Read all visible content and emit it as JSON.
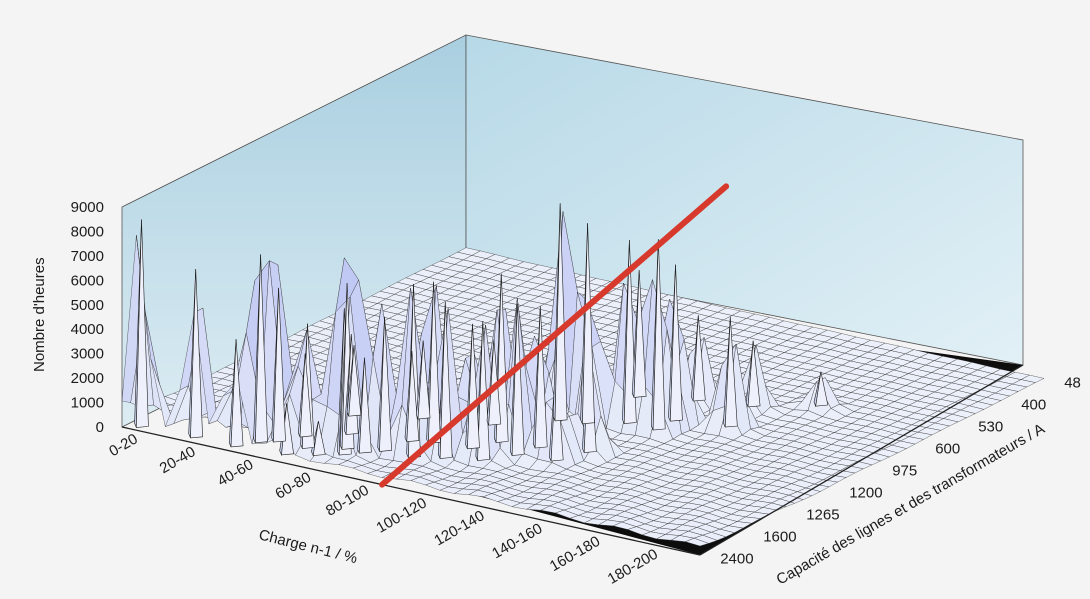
{
  "chart_data": {
    "type": "surface3d",
    "title": "",
    "zlabel": "Nombre d'heures",
    "xlabel": "Charge n-1 / %",
    "ylabel": "Capacité des lignes et des transformateurs / A",
    "zlim": [
      0,
      9000
    ],
    "z_ticks": [
      "0",
      "1000",
      "2000",
      "3000",
      "4000",
      "5000",
      "6000",
      "7000",
      "8000",
      "9000"
    ],
    "x_categories": [
      "0-20",
      "20-40",
      "40-60",
      "60-80",
      "80-100",
      "100-120",
      "120-140",
      "140-160",
      "160-180",
      "180-200"
    ],
    "y_ticks": [
      "48",
      "400",
      "530",
      "600",
      "975",
      "1200",
      "1265",
      "1600",
      "2400"
    ],
    "peaks": [
      {
        "x": 0.3,
        "y": 0.05,
        "z": 8600
      },
      {
        "x": 1.2,
        "y": 0.1,
        "z": 7000
      },
      {
        "x": 1.9,
        "y": 0.1,
        "z": 4500
      },
      {
        "x": 2.7,
        "y": 0.2,
        "z": 2200
      },
      {
        "x": 3.1,
        "y": 0.4,
        "z": 1500
      },
      {
        "x": 2.1,
        "y": 0.4,
        "z": 7800
      },
      {
        "x": 2.3,
        "y": 0.55,
        "z": 6400
      },
      {
        "x": 2.8,
        "y": 0.55,
        "z": 5200
      },
      {
        "x": 3.4,
        "y": 0.6,
        "z": 6100
      },
      {
        "x": 3.3,
        "y": 0.8,
        "z": 6900
      },
      {
        "x": 3.6,
        "y": 0.8,
        "z": 4000
      },
      {
        "x": 3.8,
        "y": 1.0,
        "z": 5600
      },
      {
        "x": 4.3,
        "y": 1.0,
        "z": 7200
      },
      {
        "x": 4.7,
        "y": 1.2,
        "z": 6500
      },
      {
        "x": 5.2,
        "y": 1.4,
        "z": 5800
      },
      {
        "x": 4.2,
        "y": 1.6,
        "z": 6700
      },
      {
        "x": 4.8,
        "y": 1.7,
        "z": 5200
      },
      {
        "x": 5.5,
        "y": 1.8,
        "z": 6300
      },
      {
        "x": 6.1,
        "y": 1.9,
        "z": 4200
      },
      {
        "x": 5.0,
        "y": 2.1,
        "z": 7000
      },
      {
        "x": 5.6,
        "y": 2.2,
        "z": 5900
      },
      {
        "x": 6.3,
        "y": 2.4,
        "z": 5000
      },
      {
        "x": 5.2,
        "y": 3.2,
        "z": 9000
      },
      {
        "x": 5.6,
        "y": 3.3,
        "z": 8300
      },
      {
        "x": 6.1,
        "y": 3.6,
        "z": 7600
      },
      {
        "x": 6.6,
        "y": 3.6,
        "z": 7900
      },
      {
        "x": 6.6,
        "y": 4.0,
        "z": 6500
      },
      {
        "x": 7.4,
        "y": 4.2,
        "z": 4600
      },
      {
        "x": 5.6,
        "y": 4.5,
        "z": 5300
      },
      {
        "x": 6.4,
        "y": 4.8,
        "z": 3600
      },
      {
        "x": 7.2,
        "y": 5.0,
        "z": 2800
      },
      {
        "x": 8.0,
        "y": 5.5,
        "z": 1500
      },
      {
        "x": 2.5,
        "y": 0.9,
        "z": 3500
      },
      {
        "x": 3.0,
        "y": 1.3,
        "z": 4200
      },
      {
        "x": 3.9,
        "y": 1.5,
        "z": 3800
      },
      {
        "x": 2.6,
        "y": 1.9,
        "z": 3000
      },
      {
        "x": 3.5,
        "y": 2.3,
        "z": 3300
      },
      {
        "x": 4.5,
        "y": 2.6,
        "z": 3600
      }
    ],
    "highlight_line": {
      "color": "#d73a2c",
      "from": {
        "x": 4.5,
        "y": 0
      },
      "to": {
        "x": 4.5,
        "y": 8
      },
      "z": 5000
    },
    "colors": {
      "surface": "#dde4f6",
      "surface_edge": "#2b2b2b",
      "back_wall": "#cfe3ee",
      "shadow": "#111111",
      "highlight": "#d73a2c"
    },
    "grid": false
  }
}
